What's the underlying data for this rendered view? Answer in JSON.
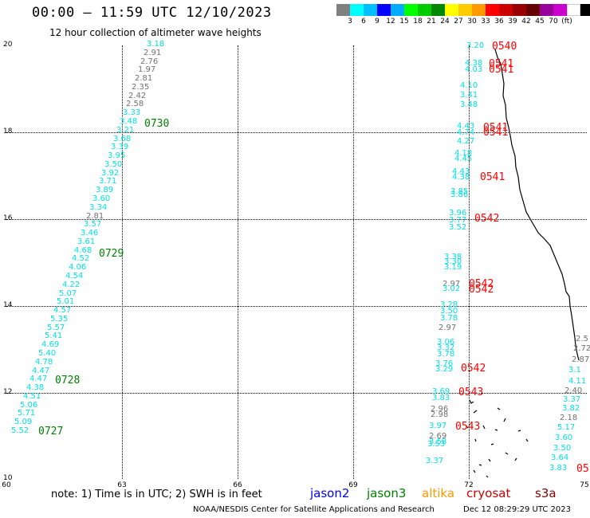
{
  "title": "00:00 – 11:59 UTC 12/10/2023",
  "subtitle": "12 hour collection of altimeter wave heights",
  "legend": {
    "colors": [
      "#808080",
      "#00ffff",
      "#00bfff",
      "#0000ff",
      "#00aaff",
      "#00ff00",
      "#00cc00",
      "#008800",
      "#ffff00",
      "#ffcc00",
      "#ff9900",
      "#ff0000",
      "#cc0000",
      "#990000",
      "#660000",
      "#990099",
      "#cc00cc",
      "#ffffff",
      "#000000"
    ],
    "ticks": [
      "3",
      "6",
      "9",
      "12",
      "15",
      "18",
      "21",
      "24",
      "27",
      "30",
      "33",
      "36",
      "39",
      "42",
      "45",
      "70",
      "(ft)"
    ]
  },
  "axes": {
    "y_labels": [
      "20",
      "18",
      "16",
      "14",
      "12",
      "10"
    ],
    "x_labels": [
      "60",
      "63",
      "66",
      "69",
      "72",
      "75"
    ]
  },
  "tracks": [
    {
      "satellite": "jason3",
      "time": "0730",
      "color": "#008000"
    },
    {
      "satellite": "jason3",
      "time": "0729",
      "color": "#008000"
    },
    {
      "satellite": "jason3",
      "time": "0728",
      "color": "#008000"
    },
    {
      "satellite": "jason3",
      "time": "0727",
      "color": "#008000"
    },
    {
      "satellite": "cryosat",
      "time": "0540",
      "color": "#ff0000"
    },
    {
      "satellite": "cryosat",
      "time": "0541",
      "color": "#ff0000"
    },
    {
      "satellite": "cryosat",
      "time": "0541",
      "color": "#ff0000"
    },
    {
      "satellite": "cryosat",
      "time": "0541",
      "color": "#ff0000"
    },
    {
      "satellite": "cryosat",
      "time": "0541",
      "color": "#ff0000"
    },
    {
      "satellite": "cryosat",
      "time": "0541",
      "color": "#ff0000"
    },
    {
      "satellite": "cryosat",
      "time": "0542",
      "color": "#ff0000"
    },
    {
      "satellite": "cryosat",
      "time": "0542",
      "color": "#ff0000"
    },
    {
      "satellite": "cryosat",
      "time": "0542",
      "color": "#ff0000"
    },
    {
      "satellite": "cryosat",
      "time": "0542",
      "color": "#ff0000"
    },
    {
      "satellite": "cryosat",
      "time": "0543",
      "color": "#ff0000"
    },
    {
      "satellite": "cryosat",
      "time": "0543",
      "color": "#ff0000"
    },
    {
      "satellite": "cryosat",
      "time": "05",
      "color": "#ff0000"
    }
  ],
  "obs_left": [
    {
      "v": "3.18",
      "c": "cyan"
    },
    {
      "v": "2.91",
      "c": "gray"
    },
    {
      "v": "2.76",
      "c": "gray"
    },
    {
      "v": "1.97",
      "c": "gray"
    },
    {
      "v": "2.81",
      "c": "gray"
    },
    {
      "v": "2.35",
      "c": "gray"
    },
    {
      "v": "2.42",
      "c": "gray"
    },
    {
      "v": "2.58",
      "c": "gray"
    },
    {
      "v": "3.33",
      "c": "cyan"
    },
    {
      "v": "3.48",
      "c": "cyan"
    },
    {
      "v": "3.21",
      "c": "cyan"
    },
    {
      "v": "3.68",
      "c": "cyan"
    },
    {
      "v": "3.39",
      "c": "cyan"
    },
    {
      "v": "3.95",
      "c": "cyan"
    },
    {
      "v": "3.50",
      "c": "cyan"
    },
    {
      "v": "3.92",
      "c": "cyan"
    },
    {
      "v": "3.71",
      "c": "cyan"
    },
    {
      "v": "3.89",
      "c": "cyan"
    },
    {
      "v": "3.60",
      "c": "cyan"
    },
    {
      "v": "3.34",
      "c": "cyan"
    },
    {
      "v": "2.81",
      "c": "gray"
    },
    {
      "v": "3.57",
      "c": "cyan"
    },
    {
      "v": "3.46",
      "c": "cyan"
    },
    {
      "v": "3.61",
      "c": "cyan"
    },
    {
      "v": "4.68",
      "c": "cyan"
    },
    {
      "v": "4.52",
      "c": "cyan"
    },
    {
      "v": "4.06",
      "c": "cyan"
    },
    {
      "v": "4.54",
      "c": "cyan"
    },
    {
      "v": "4.22",
      "c": "cyan"
    },
    {
      "v": "5.07",
      "c": "cyan"
    },
    {
      "v": "5.01",
      "c": "cyan"
    },
    {
      "v": "4.57",
      "c": "cyan"
    },
    {
      "v": "5.35",
      "c": "cyan"
    },
    {
      "v": "5.57",
      "c": "cyan"
    },
    {
      "v": "5.41",
      "c": "cyan"
    },
    {
      "v": "4.69",
      "c": "cyan"
    },
    {
      "v": "5.40",
      "c": "cyan"
    },
    {
      "v": "4.78",
      "c": "cyan"
    },
    {
      "v": "4.47",
      "c": "cyan"
    },
    {
      "v": "4.47",
      "c": "cyan"
    },
    {
      "v": "4.38",
      "c": "cyan"
    },
    {
      "v": "4.51",
      "c": "cyan"
    },
    {
      "v": "5.06",
      "c": "cyan"
    },
    {
      "v": "5.71",
      "c": "cyan"
    },
    {
      "v": "5.09",
      "c": "cyan"
    },
    {
      "v": "5.52",
      "c": "cyan"
    }
  ],
  "obs_right": [
    {
      "v": "3.20",
      "c": "cyan"
    },
    {
      "v": "4.38",
      "c": "cyan"
    },
    {
      "v": "4.03",
      "c": "cyan"
    },
    {
      "v": "4.10",
      "c": "cyan"
    },
    {
      "v": "3.41",
      "c": "cyan"
    },
    {
      "v": "3.48",
      "c": "cyan"
    },
    {
      "v": "4.43",
      "c": "cyan"
    },
    {
      "v": "4.74",
      "c": "cyan"
    },
    {
      "v": "4.27",
      "c": "cyan"
    },
    {
      "v": "4.18",
      "c": "cyan"
    },
    {
      "v": "4.45",
      "c": "cyan"
    },
    {
      "v": "4.43",
      "c": "cyan"
    },
    {
      "v": "4.38",
      "c": "cyan"
    },
    {
      "v": "3.85",
      "c": "cyan"
    },
    {
      "v": "3.86",
      "c": "cyan"
    },
    {
      "v": "3.96",
      "c": "cyan"
    },
    {
      "v": "3.77",
      "c": "cyan"
    },
    {
      "v": "3.52",
      "c": "cyan"
    },
    {
      "v": "3.38",
      "c": "cyan"
    },
    {
      "v": "3.30",
      "c": "cyan"
    },
    {
      "v": "3.19",
      "c": "cyan"
    },
    {
      "v": "2.97",
      "c": "gray"
    },
    {
      "v": "3.02",
      "c": "cyan"
    },
    {
      "v": "3.28",
      "c": "cyan"
    },
    {
      "v": "3.50",
      "c": "cyan"
    },
    {
      "v": "3.78",
      "c": "cyan"
    },
    {
      "v": "2.97",
      "c": "gray"
    },
    {
      "v": "3.06",
      "c": "cyan"
    },
    {
      "v": "3.32",
      "c": "cyan"
    },
    {
      "v": "3.78",
      "c": "cyan"
    },
    {
      "v": "3.76",
      "c": "cyan"
    },
    {
      "v": "3.29",
      "c": "cyan"
    },
    {
      "v": "3.69",
      "c": "cyan"
    },
    {
      "v": "3.83",
      "c": "cyan"
    },
    {
      "v": "2.96",
      "c": "gray"
    },
    {
      "v": "2.98",
      "c": "gray"
    },
    {
      "v": "3.97",
      "c": "cyan"
    },
    {
      "v": "2.69",
      "c": "gray"
    },
    {
      "v": "3.58",
      "c": "cyan"
    },
    {
      "v": "3.53",
      "c": "cyan"
    },
    {
      "v": "3.37",
      "c": "cyan"
    }
  ],
  "obs_far_right": [
    {
      "v": "2.5",
      "c": "gray"
    },
    {
      "v": "2.72",
      "c": "gray"
    },
    {
      "v": "2.87",
      "c": "gray"
    },
    {
      "v": "3.1",
      "c": "cyan"
    },
    {
      "v": "4.11",
      "c": "cyan"
    },
    {
      "v": "2.40",
      "c": "gray"
    },
    {
      "v": "3.37",
      "c": "cyan"
    },
    {
      "v": "3.82",
      "c": "cyan"
    },
    {
      "v": "2.18",
      "c": "gray"
    },
    {
      "v": "5.17",
      "c": "cyan"
    },
    {
      "v": "3.60",
      "c": "cyan"
    },
    {
      "v": "3.50",
      "c": "cyan"
    },
    {
      "v": "3.64",
      "c": "cyan"
    },
    {
      "v": "3.83",
      "c": "cyan"
    }
  ],
  "note": {
    "text": "note: 1) Time is in UTC; 2) SWH is in feet",
    "satellites": [
      {
        "name": "jason2",
        "color": "#0000ff"
      },
      {
        "name": "jason3",
        "color": "#008000"
      },
      {
        "name": "altika",
        "color": "#ff9900"
      },
      {
        "name": "cryosat",
        "color": "#cc0000"
      },
      {
        "name": "s3a",
        "color": "#800000"
      }
    ]
  },
  "credit": "NOAA/NESDIS Center for Satellite Applications and Research",
  "stamp": "Dec 12 08:29:29 UTC 2023"
}
